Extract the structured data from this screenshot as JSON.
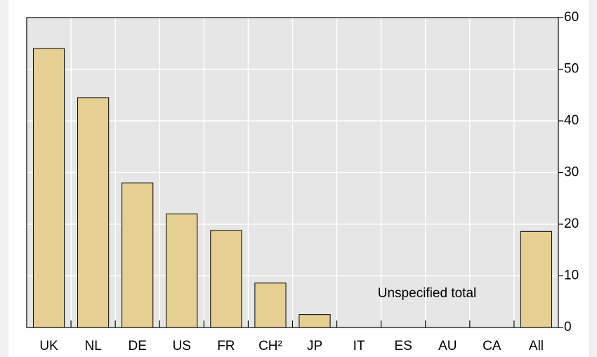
{
  "chart_data": {
    "type": "bar",
    "categories": [
      "UK",
      "NL",
      "DE",
      "US",
      "FR",
      "CH²",
      "JP",
      "IT",
      "ES",
      "AU",
      "CA",
      "All"
    ],
    "values": [
      54,
      44.5,
      28,
      22,
      18.8,
      8.6,
      2.5,
      null,
      null,
      null,
      null,
      18.6
    ],
    "color": "#e5cf93",
    "ylim": [
      0,
      60
    ],
    "yticks": [
      0,
      10,
      20,
      30,
      40,
      50,
      60
    ],
    "grid": true,
    "annotation": "Unspecified total"
  }
}
